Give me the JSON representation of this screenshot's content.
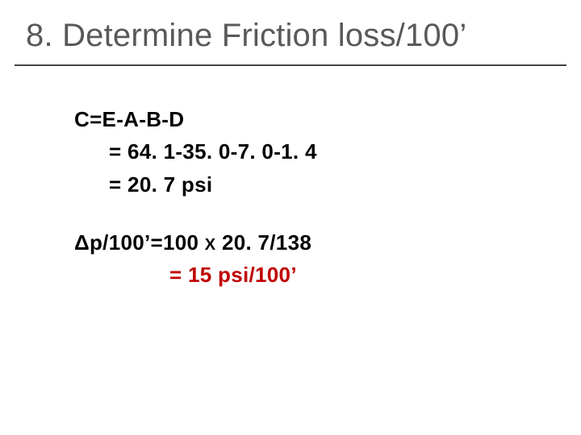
{
  "title": {
    "text": "8. Determine Friction loss/100’",
    "color": "#595959",
    "fontsize": 40
  },
  "underline_color": "#444444",
  "body": {
    "color_primary": "#000000",
    "color_accent": "#c00000",
    "fontsize": 26,
    "lines": {
      "eq1": "C=E-A-B-D",
      "eq1a": "  = 64. 1-35. 0-7. 0-1. 4",
      "eq1b": "  = 20. 7 psi",
      "eq2_prefix": "Δp/100’=100 ",
      "eq2_x": "X",
      "eq2_suffix": " 20. 7/138",
      "eq3": "= 15 psi/100’"
    }
  }
}
